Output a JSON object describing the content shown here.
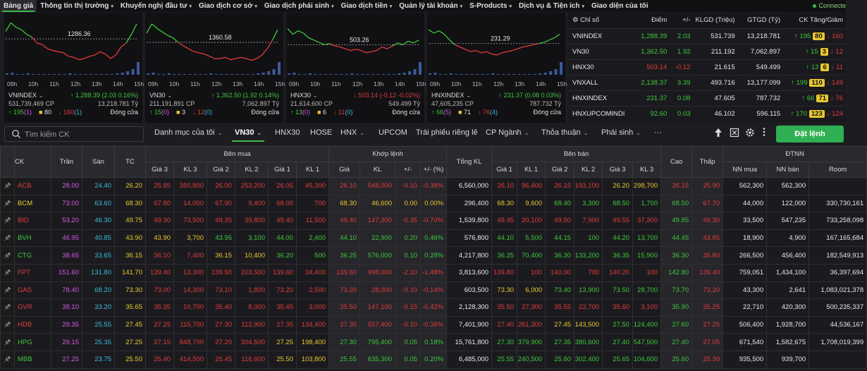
{
  "nav": {
    "items": [
      {
        "label": "Bảng giá",
        "chev": false,
        "active": true
      },
      {
        "label": "Thông tin thị trường",
        "chev": true
      },
      {
        "label": "Khuyến nghị đầu tư",
        "chev": true
      },
      {
        "label": "Giao dịch cơ sở",
        "chev": true
      },
      {
        "label": "Giao dịch phái sinh",
        "chev": true
      },
      {
        "label": "Giao dịch tiền",
        "chev": true
      },
      {
        "label": "Quản lý tài khoản",
        "chev": true
      },
      {
        "label": "S-Products",
        "chev": true
      },
      {
        "label": "Dịch vụ & Tiện ích",
        "chev": true
      },
      {
        "label": "Giao diện của tôi",
        "chev": false
      }
    ],
    "status": "Connecte"
  },
  "charts": [
    {
      "name": "VNINDEX",
      "price": "1286.36",
      "vol": "531,739,469 CP",
      "val": "13,218.781 Tỷ",
      "change": "↑ 1,288.39 (2.03 0.16%)",
      "dir": "up",
      "up": "195",
      "upParen": "(1)",
      "ref": "80",
      "down": "160",
      "downParen": "(1)",
      "status": "Đóng cửa"
    },
    {
      "name": "VN30",
      "price": "1360.58",
      "vol": "211,191,891 CP",
      "val": "7,062.897 Tỷ",
      "change": "↑ 1,362.50 (1.92 0.14%)",
      "dir": "up",
      "up": "15",
      "upParen": "(0)",
      "ref": "3",
      "down": "12",
      "downParen": "(0)",
      "status": "Đóng cửa"
    },
    {
      "name": "HNX30",
      "price": "503.26",
      "vol": "21,614,600 CP",
      "val": "549.499 Tỷ",
      "change": "↓ 503.14 (-0.12 -0.02%)",
      "dir": "dn",
      "up": "13",
      "upParen": "(0)",
      "ref": "6",
      "down": "11",
      "downParen": "(0)",
      "status": "Đóng cửa"
    },
    {
      "name": "HNXINDEX",
      "price": "231.29",
      "vol": "47,605,235 CP",
      "val": "787.732 Tỷ",
      "change": "↑ 231.37 (0.08 0.03%)",
      "dir": "up",
      "up": "66",
      "upParen": "(5)",
      "ref": "71",
      "down": "76",
      "downParen": "(4)",
      "status": "Đóng cửa"
    }
  ],
  "chart_times": [
    "09h",
    "10h",
    "11h",
    "12h",
    "13h",
    "14h",
    "15h"
  ],
  "indexTable": {
    "headers": [
      "Chỉ số",
      "Điểm",
      "+/-",
      "KLGD (Triệu)",
      "GTGD (Tỷ)",
      "CK Tăng/Giảm"
    ],
    "rows": [
      {
        "name": "VNINDEX",
        "point": "1,288.39",
        "chg": "2.03",
        "vol": "531.739",
        "val": "13,218.781",
        "up": "195",
        "ref": "80",
        "dn": "160",
        "dir": "up"
      },
      {
        "name": "VN30",
        "point": "1,362.50",
        "chg": "1.92",
        "vol": "211.192",
        "val": "7,062.897",
        "up": "15",
        "ref": "3",
        "dn": "12",
        "dir": "up"
      },
      {
        "name": "HNX30",
        "point": "503.14",
        "chg": "-0.12",
        "vol": "21.615",
        "val": "549.499",
        "up": "13",
        "ref": "6",
        "dn": "11",
        "dir": "dn"
      },
      {
        "name": "VNXALL",
        "point": "2,138.37",
        "chg": "3.39",
        "vol": "493.716",
        "val": "13,177.099",
        "up": "199",
        "ref": "110",
        "dn": "149",
        "dir": "up"
      },
      {
        "name": "HNXINDEX",
        "point": "231.37",
        "chg": "0.08",
        "vol": "47.605",
        "val": "787.732",
        "up": "66",
        "ref": "71",
        "dn": "76",
        "dir": "up"
      },
      {
        "name": "HNXUPCOMINDI",
        "point": "92.60",
        "chg": "0.03",
        "vol": "46.102",
        "val": "596.115",
        "up": "170",
        "ref": "123",
        "dn": "124",
        "dir": "up"
      }
    ]
  },
  "toolbar": {
    "searchPlaceholder": "Tìm kiếm CK",
    "tabs": [
      {
        "label": "Danh mục của tôi",
        "chev": true
      },
      {
        "label": "VN30",
        "chev": true,
        "active": true
      },
      {
        "label": "HNX30",
        "chev": false
      },
      {
        "label": "HOSE",
        "chev": false
      },
      {
        "label": "HNX",
        "chev": true
      },
      {
        "label": "UPCOM",
        "chev": false
      },
      {
        "label": "Trái phiếu riêng lẻ",
        "chev": false
      },
      {
        "label": "CP Ngành",
        "chev": true
      },
      {
        "label": "Thỏa thuận",
        "chev": true
      },
      {
        "label": "Phái sinh",
        "chev": true
      },
      {
        "label": "···",
        "chev": false
      }
    ],
    "orderButton": "Đặt lệnh"
  },
  "board": {
    "groups": {
      "buy": "Bên mua",
      "match": "Khớp lệnh",
      "sell": "Bên bán",
      "foreign": "ĐTNN"
    },
    "headers": {
      "ck": "CK",
      "ceil": "Trần",
      "floor": "Sàn",
      "ref": "TC",
      "p3": "Giá 3",
      "v3": "KL 3",
      "p2": "Giá 2",
      "v2": "KL 2",
      "p1": "Giá 1",
      "v1": "KL 1",
      "mp": "Giá",
      "mv": "KL",
      "chg": "+/-",
      "pct": "+/- (%)",
      "total": "Tổng KL",
      "high": "Cao",
      "low": "Thấp",
      "nnbuy": "NN mua",
      "nnsell": "NN bán",
      "room": "Room"
    },
    "rows": [
      {
        "ck": "ACB",
        "c": "28.00",
        "f": "24.40",
        "r": "26.20",
        "b3": "25.95",
        "bv3": "350,800",
        "b2": "26.00",
        "bv2": "253,200",
        "b1": "26.05",
        "bv1": "45,300",
        "mp": "26.10",
        "mv": "548,000",
        "chg": "-0.10",
        "pct": "-0.38%",
        "tot": "6,560,000",
        "s1": "26.10",
        "sv1": "96,400",
        "s2": "26.15",
        "sv2": "193,100",
        "s3": "26.20",
        "sv3": "298,700",
        "hi": "26.15",
        "lo": "25.90",
        "nb": "562,300",
        "ns": "562,300",
        "room": "",
        "k": {
          "ck": "dn",
          "b3": "dn",
          "b2": "dn",
          "b1": "dn",
          "m": "dn",
          "s1": "dn",
          "s2": "dn",
          "s3": "ref",
          "hi": "dn",
          "lo": "dn"
        }
      },
      {
        "ck": "BCM",
        "c": "73.00",
        "f": "63.60",
        "r": "68.30",
        "b3": "67.80",
        "bv3": "14,000",
        "b2": "67.90",
        "bv2": "9,400",
        "b1": "68.00",
        "bv1": "700",
        "mp": "68.30",
        "mv": "46,600",
        "chg": "0.00",
        "pct": "0.00%",
        "tot": "296,400",
        "s1": "68.30",
        "sv1": "9,600",
        "s2": "68.40",
        "sv2": "3,300",
        "s3": "68.50",
        "sv3": "1,700",
        "hi": "68.50",
        "lo": "67.70",
        "nb": "44,000",
        "ns": "122,000",
        "room": "330,730,161",
        "k": {
          "ck": "ref",
          "b3": "dn",
          "b2": "dn",
          "b1": "dn",
          "m": "ref",
          "s1": "ref",
          "s2": "up",
          "s3": "up",
          "hi": "up",
          "lo": "dn"
        }
      },
      {
        "ck": "BID",
        "c": "53.20",
        "f": "46.30",
        "r": "49.75",
        "b3": "49.30",
        "bv3": "73,500",
        "b2": "49.35",
        "bv2": "39,800",
        "b1": "49.40",
        "bv1": "11,500",
        "mp": "49.40",
        "mv": "147,200",
        "chg": "-0.35",
        "pct": "-0.70%",
        "tot": "1,539,800",
        "s1": "49.45",
        "sv1": "20,100",
        "s2": "49.50",
        "sv2": "7,900",
        "s3": "49.55",
        "sv3": "37,300",
        "hi": "49.85",
        "lo": "49.30",
        "nb": "33,500",
        "ns": "547,235",
        "room": "733,258,098",
        "k": {
          "ck": "dn",
          "b3": "dn",
          "b2": "dn",
          "b1": "dn",
          "m": "dn",
          "s1": "dn",
          "s2": "dn",
          "s3": "dn",
          "hi": "up",
          "lo": "dn"
        }
      },
      {
        "ck": "BVH",
        "c": "46.95",
        "f": "40.85",
        "r": "43.90",
        "b3": "43.90",
        "bv3": "3,700",
        "b2": "43.95",
        "bv2": "3,100",
        "b1": "44.00",
        "bv1": "2,400",
        "mp": "44.10",
        "mv": "22,900",
        "chg": "0.20",
        "pct": "0.46%",
        "tot": "576,800",
        "s1": "44.10",
        "sv1": "5,500",
        "s2": "44.15",
        "sv2": "100",
        "s3": "44.20",
        "sv3": "13,700",
        "hi": "44.45",
        "lo": "43.85",
        "nb": "18,900",
        "ns": "4,900",
        "room": "167,165,684",
        "k": {
          "ck": "up",
          "b3": "ref",
          "b2": "up",
          "b1": "up",
          "m": "up",
          "s1": "up",
          "s2": "up",
          "s3": "up",
          "hi": "up",
          "lo": "dn"
        }
      },
      {
        "ck": "CTG",
        "c": "38.65",
        "f": "33.65",
        "r": "36.15",
        "b3": "36.10",
        "bv3": "7,400",
        "b2": "36.15",
        "bv2": "10,400",
        "b1": "36.20",
        "bv1": "500",
        "mp": "36.25",
        "mv": "576,000",
        "chg": "0.10",
        "pct": "0.28%",
        "tot": "4,217,800",
        "s1": "36.25",
        "sv1": "70,400",
        "s2": "36.30",
        "sv2": "133,200",
        "s3": "36.35",
        "sv3": "15,900",
        "hi": "36.30",
        "lo": "35.80",
        "nb": "266,500",
        "ns": "456,400",
        "room": "182,549,913",
        "k": {
          "ck": "up",
          "b3": "dn",
          "b2": "ref",
          "b1": "up",
          "m": "up",
          "s1": "up",
          "s2": "up",
          "s3": "up",
          "hi": "up",
          "lo": "dn"
        }
      },
      {
        "ck": "FPT",
        "c": "151.60",
        "f": "131.80",
        "r": "141.70",
        "b3": "139.40",
        "bv3": "13,300",
        "b2": "139.50",
        "bv2": "203,500",
        "b1": "139.60",
        "bv1": "34,400",
        "mp": "139.60",
        "mv": "998,000",
        "chg": "-2.10",
        "pct": "-1.48%",
        "tot": "3,813,600",
        "s1": "139.80",
        "sv1": "100",
        "s2": "140.00",
        "sv2": "700",
        "s3": "140.20",
        "sv3": "100",
        "hi": "142.80",
        "lo": "139.40",
        "nb": "759,051",
        "ns": "1,434,100",
        "room": "36,397,694",
        "k": {
          "ck": "dn",
          "b3": "dn",
          "b2": "dn",
          "b1": "dn",
          "m": "dn",
          "s1": "dn",
          "s2": "dn",
          "s3": "dn",
          "hi": "up",
          "lo": "dn"
        }
      },
      {
        "ck": "GAS",
        "c": "78.40",
        "f": "68.20",
        "r": "73.30",
        "b3": "73.00",
        "bv3": "14,300",
        "b2": "73.10",
        "bv2": "1,800",
        "b1": "73.20",
        "bv1": "2,500",
        "mp": "73.20",
        "mv": "28,000",
        "chg": "-0.10",
        "pct": "-0.14%",
        "tot": "603,500",
        "s1": "73.30",
        "sv1": "6,000",
        "s2": "73.40",
        "sv2": "13,900",
        "s3": "73.50",
        "sv3": "28,700",
        "hi": "73.70",
        "lo": "73.20",
        "nb": "43,300",
        "ns": "2,641",
        "room": "1,083,021,378",
        "k": {
          "ck": "dn",
          "b3": "dn",
          "b2": "dn",
          "b1": "dn",
          "m": "dn",
          "s1": "ref",
          "s2": "up",
          "s3": "up",
          "hi": "up",
          "lo": "dn"
        }
      },
      {
        "ck": "GVR",
        "c": "38.10",
        "f": "33.20",
        "r": "35.65",
        "b3": "35.35",
        "bv3": "10,700",
        "b2": "35.40",
        "bv2": "8,000",
        "b1": "35.45",
        "bv1": "3,000",
        "mp": "35.50",
        "mv": "147,100",
        "chg": "-0.15",
        "pct": "-0.42%",
        "tot": "2,128,300",
        "s1": "35.50",
        "sv1": "27,300",
        "s2": "35.55",
        "sv2": "22,700",
        "s3": "35.60",
        "sv3": "3,100",
        "hi": "35.90",
        "lo": "35.25",
        "nb": "22,710",
        "ns": "420,300",
        "room": "500,235,337",
        "k": {
          "ck": "dn",
          "b3": "dn",
          "b2": "dn",
          "b1": "dn",
          "m": "dn",
          "s1": "dn",
          "s2": "dn",
          "s3": "dn",
          "hi": "up",
          "lo": "dn"
        }
      },
      {
        "ck": "HDB",
        "c": "29.35",
        "f": "25.55",
        "r": "27.45",
        "b3": "27.25",
        "bv3": "115,700",
        "b2": "27.30",
        "bv2": "112,900",
        "b1": "27.35",
        "bv1": "134,400",
        "mp": "27.35",
        "mv": "557,400",
        "chg": "-0.10",
        "pct": "-0.36%",
        "tot": "7,401,900",
        "s1": "27.40",
        "sv1": "261,300",
        "s2": "27.45",
        "sv2": "143,500",
        "s3": "27.50",
        "sv3": "124,400",
        "hi": "27.60",
        "lo": "27.25",
        "nb": "506,400",
        "ns": "1,928,700",
        "room": "44,536,167",
        "k": {
          "ck": "dn",
          "b3": "dn",
          "b2": "dn",
          "b1": "dn",
          "m": "dn",
          "s1": "dn",
          "s2": "ref",
          "s3": "up",
          "hi": "up",
          "lo": "dn"
        }
      },
      {
        "ck": "HPG",
        "c": "29.15",
        "f": "25.35",
        "r": "27.25",
        "b3": "27.15",
        "bv3": "848,700",
        "b2": "27.20",
        "bv2": "304,500",
        "b1": "27.25",
        "bv1": "198,400",
        "mp": "27.30",
        "mv": "795,400",
        "chg": "0.05",
        "pct": "0.18%",
        "tot": "15,761,800",
        "s1": "27.30",
        "sv1": "379,900",
        "s2": "27.35",
        "sv2": "380,600",
        "s3": "27.40",
        "sv3": "547,500",
        "hi": "27.40",
        "lo": "27.05",
        "nb": "671,540",
        "ns": "1,582,675",
        "room": "1,708,019,399",
        "k": {
          "ck": "up",
          "b3": "dn",
          "b2": "dn",
          "b1": "ref",
          "m": "up",
          "s1": "up",
          "s2": "up",
          "s3": "up",
          "hi": "up",
          "lo": "dn"
        }
      },
      {
        "ck": "MBB",
        "c": "27.25",
        "f": "23.75",
        "r": "25.50",
        "b3": "25.40",
        "bv3": "414,500",
        "b2": "25.45",
        "bv2": "116,600",
        "b1": "25.50",
        "bv1": "103,800",
        "mp": "25.55",
        "mv": "635,300",
        "chg": "0.05",
        "pct": "0.20%",
        "tot": "6,485,000",
        "s1": "25.55",
        "sv1": "240,500",
        "s2": "25.60",
        "sv2": "302,400",
        "s3": "25.65",
        "sv3": "104,600",
        "hi": "25.60",
        "lo": "25.30",
        "nb": "935,500",
        "ns": "939,700",
        "room": "",
        "k": {
          "ck": "up",
          "b3": "dn",
          "b2": "dn",
          "b1": "ref",
          "m": "up",
          "s1": "up",
          "s2": "up",
          "s3": "up",
          "hi": "up",
          "lo": "dn"
        }
      }
    ]
  },
  "colors": {
    "up": "#3ec83b",
    "down": "#e23b3b",
    "ref": "#e8c82e",
    "ceil": "#d957e3",
    "floor": "#3bb9d8",
    "accent": "#2fb052"
  }
}
